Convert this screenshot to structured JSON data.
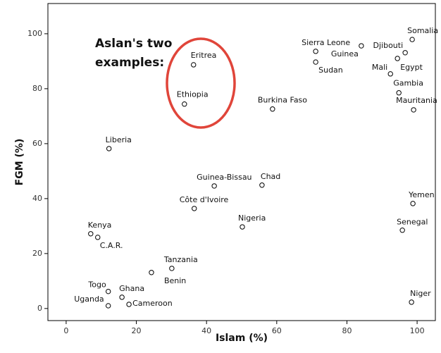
{
  "chart_data": {
    "type": "scatter",
    "x_label": "Islam (%)",
    "y_label": "FGM (%)",
    "annotation": [
      "Aslan's two",
      "examples:"
    ],
    "annotation_color": "#e0453a",
    "point_labels": [
      "Somalia",
      "Sierra Leone",
      "Guinea",
      "Djibouti",
      "Sudan",
      "Egypt",
      "Mali",
      "Gambia",
      "Mauritania",
      "Eritrea",
      "Ethiopia",
      "Burkina Faso",
      "Liberia",
      "Guinea-Bissau",
      "Chad",
      "Côte d'Ivoire",
      "Nigeria",
      "Yemen",
      "Senegal",
      "Kenya",
      "C.A.R.",
      "Tanzania",
      "Benin",
      "Togo",
      "Ghana",
      "Uganda",
      "Cameroon",
      "Niger"
    ],
    "x": [
      98.6,
      71.1,
      84.1,
      96.6,
      71.1,
      94.4,
      92.4,
      94.8,
      99.0,
      36.3,
      33.7,
      58.8,
      12.2,
      42.2,
      55.8,
      36.5,
      50.2,
      98.8,
      95.8,
      7.0,
      9.0,
      30.1,
      24.3,
      12.0,
      15.9,
      12.0,
      17.9,
      98.4
    ],
    "values": [
      97.9,
      93.6,
      95.6,
      93.1,
      89.7,
      91.0,
      85.4,
      78.5,
      72.3,
      88.7,
      74.4,
      72.6,
      58.2,
      44.6,
      44.9,
      36.4,
      29.7,
      38.2,
      28.5,
      27.2,
      25.9,
      14.6,
      13.1,
      6.2,
      4.1,
      1.0,
      1.5,
      2.3
    ],
    "xlim": [
      -5.2,
      105.2
    ],
    "ylim": [
      -4.4,
      111
    ],
    "xticks": [
      0,
      20,
      40,
      60,
      80,
      100
    ],
    "yticks": [
      0,
      20,
      40,
      60,
      80,
      100
    ],
    "grid": false
  }
}
